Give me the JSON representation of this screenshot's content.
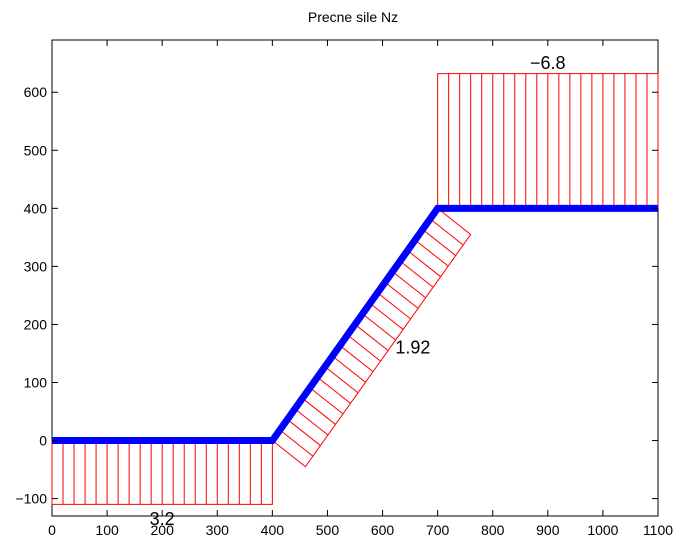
{
  "chart_data": {
    "type": "line",
    "title": "Precne sile Nz",
    "xlabel": "",
    "ylabel": "",
    "xlim": [
      0,
      1100
    ],
    "ylim": [
      -130,
      690
    ],
    "xticks": [
      0,
      100,
      200,
      300,
      400,
      500,
      600,
      700,
      800,
      900,
      1000,
      1100
    ],
    "yticks": [
      -100,
      0,
      100,
      200,
      300,
      400,
      500,
      600
    ],
    "xtick_labels": [
      "0",
      "100",
      "200",
      "300",
      "400",
      "500",
      "600",
      "700",
      "800",
      "900",
      "1000",
      "1100"
    ],
    "ytick_labels": [
      "−100",
      "0",
      "100",
      "200",
      "300",
      "400",
      "500",
      "600"
    ],
    "grid": false,
    "legend": "none",
    "structure": {
      "color": "#0000ff",
      "x": [
        0,
        400,
        700,
        1100
      ],
      "y": [
        0,
        0,
        400,
        400
      ]
    },
    "diagram_color": "#ff0000",
    "members": [
      {
        "x1": 0,
        "y1": 0,
        "x2": 400,
        "y2": 0,
        "offset": [
          0,
          -110
        ],
        "hatch_count": 20,
        "value_label": "3.2",
        "label_pos": [
          200,
          -135
        ]
      },
      {
        "x1": 400,
        "y1": 0,
        "x2": 700,
        "y2": 400,
        "offset": [
          60,
          -45
        ],
        "hatch_count": 22,
        "value_label": "1.92",
        "label_pos": [
          655,
          160
        ]
      },
      {
        "x1": 700,
        "y1": 400,
        "x2": 1100,
        "y2": 400,
        "offset": [
          0,
          232
        ],
        "hatch_count": 20,
        "value_label": "−6.8",
        "label_pos": [
          900,
          650
        ]
      }
    ]
  }
}
